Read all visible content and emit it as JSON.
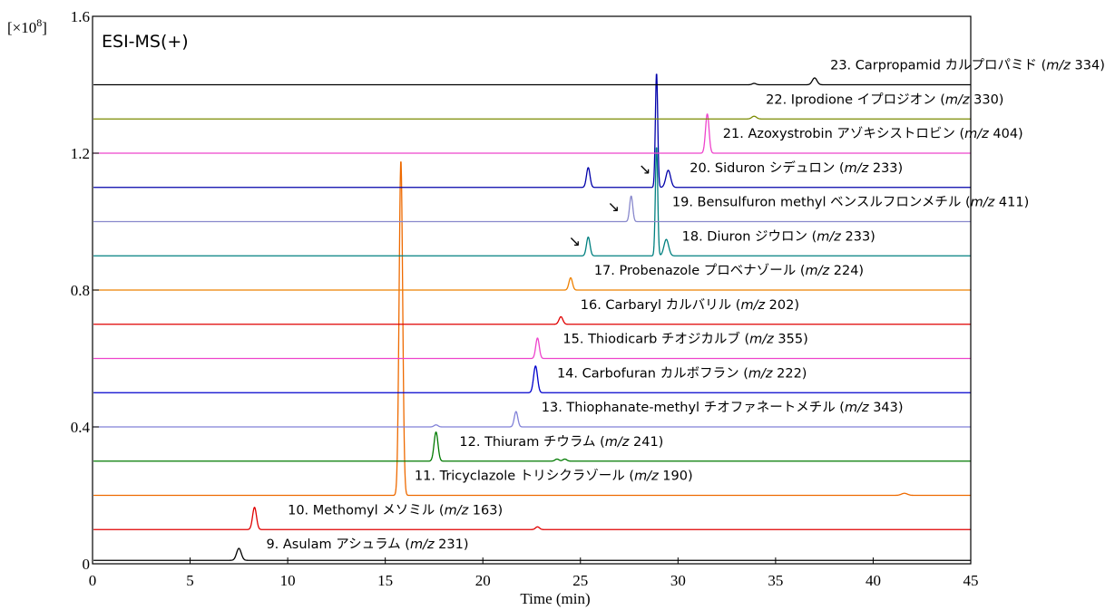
{
  "chart_data": {
    "type": "line",
    "title": "ESI-MS(+)",
    "xlabel": "Time (min)",
    "ylabel": "[×10⁸]",
    "ylabel_base": "[×10",
    "ylabel_exp": "8",
    "ylabel_close": "]",
    "xlim": [
      0,
      45
    ],
    "ylim": [
      0,
      1.6
    ],
    "x_ticks": [
      0,
      5,
      10,
      15,
      20,
      25,
      30,
      35,
      40,
      45
    ],
    "y_ticks": [
      0,
      0.4,
      0.8,
      1.2,
      1.6
    ],
    "y_tick_labels": [
      "0",
      "0.4",
      "0.8",
      "1.2",
      "1.6"
    ],
    "grid": false,
    "legend": "inline labels next to traces",
    "series": [
      {
        "name": "9. Asulam アシュラム (m/z 231)",
        "prefix": "9. Asulam アシュラム (",
        "mz": "m/z",
        "suffix": " 231)",
        "baseline": 0.01,
        "color": "#000000",
        "peaks": [
          {
            "x": 7.5,
            "h": 0.035,
            "w": 0.12
          }
        ]
      },
      {
        "name": "10. Methomyl メソミル (m/z 163)",
        "prefix": "10. Methomyl メソミル (",
        "mz": "m/z",
        "suffix": " 163)",
        "baseline": 0.1,
        "color": "#e00000",
        "peaks": [
          {
            "x": 8.3,
            "h": 0.065,
            "w": 0.1
          },
          {
            "x": 22.8,
            "h": 0.008,
            "w": 0.1
          }
        ]
      },
      {
        "name": "11. Tricyclazole トリシクラゾール (m/z 190)",
        "prefix": "11. Tricyclazole トリシクラゾール (",
        "mz": "m/z",
        "suffix": " 190)",
        "baseline": 0.2,
        "color": "#ee6a00",
        "peaks": [
          {
            "x": 15.8,
            "h": 0.98,
            "w": 0.09
          },
          {
            "x": 41.6,
            "h": 0.006,
            "w": 0.15
          }
        ]
      },
      {
        "name": "12. Thiuram チウラム (m/z 241)",
        "prefix": "12. Thiuram チウラム (",
        "mz": "m/z",
        "suffix": " 241)",
        "baseline": 0.3,
        "color": "#007a00",
        "peaks": [
          {
            "x": 17.6,
            "h": 0.085,
            "w": 0.1
          },
          {
            "x": 23.8,
            "h": 0.006,
            "w": 0.1
          },
          {
            "x": 24.2,
            "h": 0.006,
            "w": 0.1
          }
        ]
      },
      {
        "name": "13. Thiophanate-methyl チオファネートメチル (m/z 343)",
        "prefix": "13. Thiophanate-methyl チオファネートメチル (",
        "mz": "m/z",
        "suffix": " 343)",
        "baseline": 0.4,
        "color": "#8080d8",
        "peaks": [
          {
            "x": 17.6,
            "h": 0.006,
            "w": 0.1
          },
          {
            "x": 21.7,
            "h": 0.045,
            "w": 0.09
          }
        ]
      },
      {
        "name": "14. Carbofuran カルボフラン (m/z 222)",
        "prefix": "14. Carbofuran カルボフラン (",
        "mz": "m/z",
        "suffix": " 222)",
        "baseline": 0.5,
        "color": "#0000cc",
        "peaks": [
          {
            "x": 22.7,
            "h": 0.078,
            "w": 0.1
          }
        ]
      },
      {
        "name": "15. Thiodicarb チオジカルブ (m/z 355)",
        "prefix": "15. Thiodicarb チオジカルブ (",
        "mz": "m/z",
        "suffix": " 355)",
        "baseline": 0.6,
        "color": "#ee44cc",
        "peaks": [
          {
            "x": 22.8,
            "h": 0.06,
            "w": 0.09
          }
        ]
      },
      {
        "name": "16. Carbaryl カルバリル (m/z 202)",
        "prefix": "16. Carbaryl カルバリル (",
        "mz": "m/z",
        "suffix": " 202)",
        "baseline": 0.7,
        "color": "#e00000",
        "peaks": [
          {
            "x": 24.0,
            "h": 0.022,
            "w": 0.1
          }
        ]
      },
      {
        "name": "17. Probenazole プロベナゾール (m/z 224)",
        "prefix": "17. Probenazole プロベナゾール (",
        "mz": "m/z",
        "suffix": " 224)",
        "baseline": 0.8,
        "color": "#ee8000",
        "peaks": [
          {
            "x": 24.5,
            "h": 0.036,
            "w": 0.09
          }
        ]
      },
      {
        "name": "18. Diuron ジウロン (m/z 233)",
        "prefix": "18. Diuron ジウロン (",
        "mz": "m/z",
        "suffix": " 233)",
        "baseline": 0.9,
        "color": "#008080",
        "peaks": [
          {
            "x": 25.4,
            "h": 0.055,
            "w": 0.09
          },
          {
            "x": 28.9,
            "h": 0.32,
            "w": 0.06
          },
          {
            "x": 29.4,
            "h": 0.048,
            "w": 0.12
          }
        ]
      },
      {
        "name": "19. Bensulfuron methyl ベンスルフロンメチル (m/z 411)",
        "prefix": "19. Bensulfuron methyl ベンスルフロンメチル (",
        "mz": "m/z",
        "suffix": " 411)",
        "baseline": 1.0,
        "color": "#8888cc",
        "peaks": [
          {
            "x": 27.6,
            "h": 0.075,
            "w": 0.08
          },
          {
            "x": 28.9,
            "h": 0.0,
            "w": 0.06
          }
        ]
      },
      {
        "name": "20. Siduron シデュロン (m/z 233)",
        "prefix": "20. Siduron シデュロン (",
        "mz": "m/z",
        "suffix": " 233)",
        "baseline": 1.1,
        "color": "#0000aa",
        "peaks": [
          {
            "x": 25.4,
            "h": 0.058,
            "w": 0.09
          },
          {
            "x": 28.9,
            "h": 0.335,
            "w": 0.06
          },
          {
            "x": 29.5,
            "h": 0.05,
            "w": 0.12
          }
        ]
      },
      {
        "name": "21. Azoxystrobin アゾキシストロビン (m/z 404)",
        "prefix": "21. Azoxystrobin アゾキシストロビン (",
        "mz": "m/z",
        "suffix": " 404)",
        "baseline": 1.2,
        "color": "#ee44cc",
        "peaks": [
          {
            "x": 31.5,
            "h": 0.115,
            "w": 0.09
          }
        ]
      },
      {
        "name": "22. Iprodione イプロジオン (m/z 330)",
        "prefix": "22. Iprodione イプロジオン (",
        "mz": "m/z",
        "suffix": " 330)",
        "baseline": 1.3,
        "color": "#7a8a00",
        "peaks": [
          {
            "x": 33.9,
            "h": 0.008,
            "w": 0.12
          }
        ]
      },
      {
        "name": "23. Carpropamid カルプロパミド (m/z 334)",
        "prefix": "23. Carpropamid カルプロパミド (",
        "mz": "m/z",
        "suffix": " 334)",
        "baseline": 1.4,
        "color": "#000000",
        "peaks": [
          {
            "x": 33.9,
            "h": 0.004,
            "w": 0.1
          },
          {
            "x": 37.0,
            "h": 0.02,
            "w": 0.12
          }
        ]
      }
    ],
    "annotations": [
      {
        "symbol": "↘",
        "x": 28.3,
        "y": 1.155
      },
      {
        "symbol": "↘",
        "x": 26.7,
        "y": 1.045
      },
      {
        "symbol": "↘",
        "x": 24.7,
        "y": 0.945
      }
    ],
    "label_positions": [
      {
        "series": 0,
        "x": 8.9,
        "y": 0.045
      },
      {
        "series": 1,
        "x": 10.0,
        "y": 0.145
      },
      {
        "series": 2,
        "x": 16.5,
        "y": 0.245
      },
      {
        "series": 3,
        "x": 18.8,
        "y": 0.345
      },
      {
        "series": 4,
        "x": 23.0,
        "y": 0.445
      },
      {
        "series": 5,
        "x": 23.8,
        "y": 0.545
      },
      {
        "series": 6,
        "x": 24.1,
        "y": 0.645
      },
      {
        "series": 7,
        "x": 25.0,
        "y": 0.745
      },
      {
        "series": 8,
        "x": 25.7,
        "y": 0.845
      },
      {
        "series": 9,
        "x": 30.2,
        "y": 0.945
      },
      {
        "series": 10,
        "x": 29.7,
        "y": 1.045
      },
      {
        "series": 11,
        "x": 30.6,
        "y": 1.145
      },
      {
        "series": 12,
        "x": 32.3,
        "y": 1.245
      },
      {
        "series": 13,
        "x": 34.5,
        "y": 1.345
      },
      {
        "series": 14,
        "x": 37.8,
        "y": 1.445
      }
    ]
  }
}
